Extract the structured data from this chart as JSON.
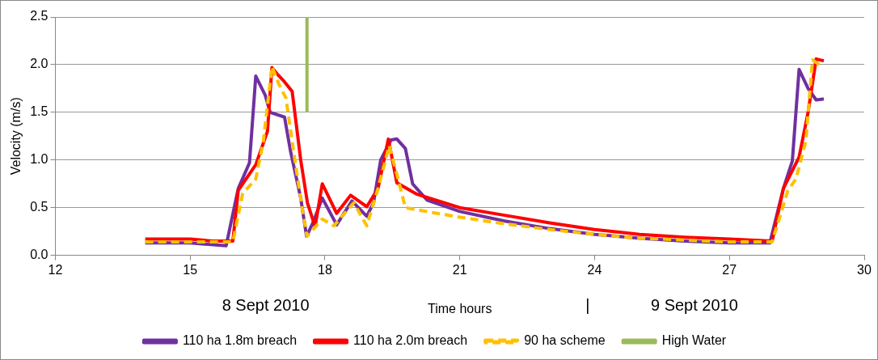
{
  "chart_data": {
    "type": "line",
    "xlabel": "Time hours",
    "ylabel": "Velocity (m/s)",
    "xlim": [
      12,
      30
    ],
    "xticks": [
      12,
      15,
      18,
      21,
      24,
      27,
      30
    ],
    "ylim": [
      0,
      2.5
    ],
    "yticks": [
      {
        "value": 0,
        "label": "0.0"
      },
      {
        "value": 0.5,
        "label": "0.5"
      },
      {
        "value": 1,
        "label": "1.0"
      },
      {
        "value": 1.5,
        "label": "1.5"
      },
      {
        "value": 2,
        "label": "2.0"
      },
      {
        "value": 2.5,
        "label": "2.5"
      }
    ],
    "grid": "y",
    "legend": "bottom",
    "marker": "none",
    "annotations": [
      "8 Sept 2010",
      "|",
      "9 Sept 2010"
    ],
    "series": [
      {
        "name": "110 ha 1.8m breach",
        "color": "#7030a0",
        "x": [
          14,
          15,
          15.8,
          16.07,
          16.32,
          16.46,
          16.67,
          16.78,
          17.1,
          17.23,
          17.46,
          17.59,
          17.74,
          17.94,
          18.26,
          18.6,
          18.93,
          19.08,
          19.24,
          19.47,
          19.6,
          19.79,
          19.95,
          20.1,
          20.27,
          21,
          22,
          23,
          24,
          25,
          26,
          27,
          27.9,
          28.2,
          28.4,
          28.55,
          28.75,
          28.93,
          29.1
        ],
        "values": [
          0.13,
          0.13,
          0.1,
          0.7,
          0.97,
          1.88,
          1.68,
          1.5,
          1.45,
          1.1,
          0.6,
          0.2,
          0.35,
          0.6,
          0.32,
          0.57,
          0.41,
          0.55,
          1.0,
          1.21,
          1.22,
          1.12,
          0.75,
          0.67,
          0.58,
          0.46,
          0.36,
          0.28,
          0.22,
          0.18,
          0.15,
          0.13,
          0.13,
          0.7,
          0.99,
          1.95,
          1.75,
          1.63,
          1.64
        ]
      },
      {
        "name": "110 ha 2.0m breach",
        "color": "#ff0000",
        "x": [
          14,
          15,
          15.5,
          15.95,
          16.07,
          16.46,
          16.72,
          16.82,
          16.94,
          17.1,
          17.27,
          17.46,
          17.61,
          17.78,
          17.94,
          18.26,
          18.57,
          18.93,
          19.18,
          19.41,
          19.6,
          20.05,
          21,
          22,
          23,
          24,
          25,
          26,
          27,
          27.95,
          28.2,
          28.55,
          28.75,
          28.93,
          29.1
        ],
        "values": [
          0.17,
          0.17,
          0.15,
          0.15,
          0.68,
          0.95,
          1.3,
          1.97,
          1.9,
          1.82,
          1.72,
          1.0,
          0.55,
          0.3,
          0.75,
          0.44,
          0.63,
          0.51,
          0.7,
          1.22,
          0.76,
          0.64,
          0.5,
          0.42,
          0.34,
          0.27,
          0.22,
          0.19,
          0.17,
          0.15,
          0.7,
          1.03,
          1.5,
          2.06,
          2.04
        ]
      },
      {
        "name": "90 ha scheme",
        "color": "#ffc000",
        "line_style": "dashed",
        "x": [
          14,
          15,
          15.95,
          16.17,
          16.46,
          16.63,
          16.82,
          16.97,
          17.13,
          17.33,
          17.49,
          17.6,
          17.94,
          18.2,
          18.64,
          18.93,
          19.18,
          19.43,
          19.6,
          19.79,
          20.37,
          21,
          22,
          23,
          24,
          25,
          26,
          27,
          27.95,
          28.3,
          28.48,
          28.7,
          28.85,
          29.0
        ],
        "values": [
          0.14,
          0.14,
          0.14,
          0.65,
          0.8,
          1.2,
          1.98,
          1.8,
          1.65,
          1.0,
          0.5,
          0.2,
          0.38,
          0.31,
          0.55,
          0.31,
          0.7,
          1.15,
          0.85,
          0.5,
          0.45,
          0.4,
          0.33,
          0.27,
          0.22,
          0.18,
          0.16,
          0.14,
          0.14,
          0.68,
          0.8,
          1.2,
          2.05,
          2.0
        ]
      },
      {
        "name": "High Water",
        "color": "#9bbb59",
        "x": [
          17.6,
          17.6
        ],
        "values": [
          1.5,
          2.5
        ]
      }
    ]
  }
}
